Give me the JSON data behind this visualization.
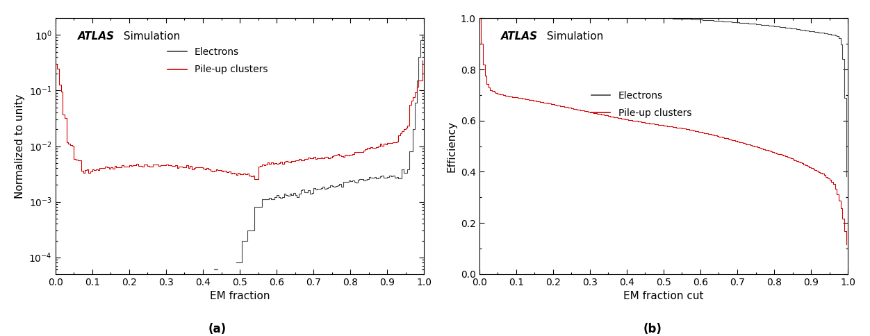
{
  "fig_width": 12.52,
  "fig_height": 4.84,
  "dpi": 100,
  "panel_a": {
    "xlabel": "EM fraction",
    "ylabel": "Normalized to unity",
    "ylim": [
      5e-05,
      2.0
    ],
    "xlim": [
      0.0,
      1.0
    ],
    "title_italic": "ATLAS",
    "title_normal": " Simulation",
    "legend_electrons": "Electrons",
    "legend_pileup": "Pile-up clusters",
    "label_a": "(a)"
  },
  "panel_b": {
    "xlabel": "EM fraction cut",
    "ylabel": "Efficiency",
    "ylim": [
      0.0,
      1.0
    ],
    "xlim": [
      0.0,
      1.0
    ],
    "title_italic": "ATLAS",
    "title_normal": " Simulation",
    "legend_electrons": "Electrons",
    "legend_pileup": "Pile-up clusters",
    "label_b": "(b)"
  },
  "electron_color": "#404040",
  "pileup_color": "#cc0000",
  "n_bins": 200
}
